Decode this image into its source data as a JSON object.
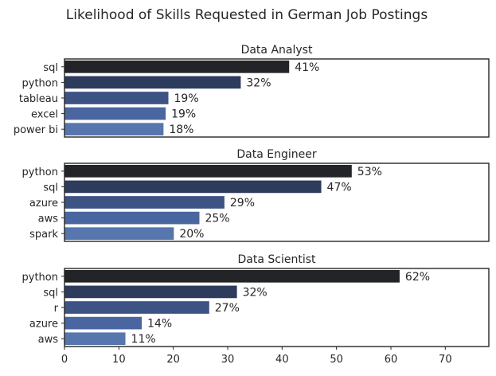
{
  "suptitle": "Likelihood of Skills Requested in German Job Postings",
  "chart_data": [
    {
      "type": "bar",
      "orientation": "horizontal",
      "title": "Data Analyst",
      "categories": [
        "sql",
        "python",
        "tableau",
        "excel",
        "power bi"
      ],
      "values": [
        41.3,
        32.4,
        19.1,
        18.6,
        18.2
      ],
      "labels": [
        "41%",
        "32%",
        "19%",
        "19%",
        "18%"
      ],
      "xlim": [
        0,
        78
      ],
      "show_xticks": false
    },
    {
      "type": "bar",
      "orientation": "horizontal",
      "title": "Data Engineer",
      "categories": [
        "python",
        "sql",
        "azure",
        "aws",
        "spark"
      ],
      "values": [
        52.8,
        47.2,
        29.4,
        24.8,
        20.1
      ],
      "labels": [
        "53%",
        "47%",
        "29%",
        "25%",
        "20%"
      ],
      "xlim": [
        0,
        78
      ],
      "show_xticks": false
    },
    {
      "type": "bar",
      "orientation": "horizontal",
      "title": "Data Scientist",
      "categories": [
        "python",
        "sql",
        "r",
        "azure",
        "aws"
      ],
      "values": [
        61.6,
        31.7,
        26.6,
        14.2,
        11.2
      ],
      "labels": [
        "62%",
        "32%",
        "27%",
        "14%",
        "11%"
      ],
      "xlim": [
        0,
        78
      ],
      "show_xticks": true,
      "xticks": [
        "0",
        "10",
        "20",
        "30",
        "40",
        "50",
        "60",
        "70"
      ]
    }
  ],
  "colors": [
    "#232428",
    "#2d3c5c",
    "#3d5384",
    "#4a66a0",
    "#5676ad"
  ],
  "grid": false,
  "legend": "none"
}
